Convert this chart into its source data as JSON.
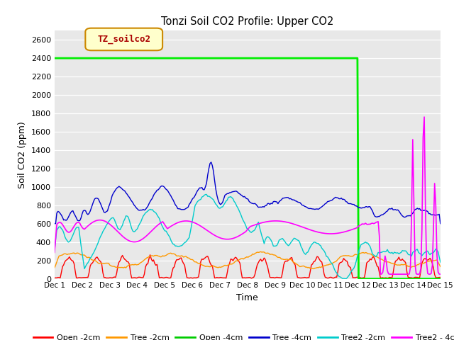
{
  "title": "Tonzi Soil CO2 Profile: Upper CO2",
  "xlabel": "Time",
  "ylabel": "Soil CO2 (ppm)",
  "ylim": [
    0,
    2700
  ],
  "yticks": [
    0,
    200,
    400,
    600,
    800,
    1000,
    1200,
    1400,
    1600,
    1800,
    2000,
    2200,
    2400,
    2600
  ],
  "xlim": [
    0,
    14
  ],
  "xtick_labels": [
    "Dec 1",
    "Dec 2",
    "Dec 3",
    "Dec 4",
    "Dec 5",
    "Dec 6",
    "Dec 7",
    "Dec 8",
    "Dec 9",
    "Dec 10",
    "Dec 11",
    "Dec 12",
    "Dec 13",
    "Dec 14",
    "Dec 15"
  ],
  "legend_label": "TZ_soilco2",
  "legend_items": [
    {
      "label": "Open -2cm",
      "color": "#ff0000"
    },
    {
      "label": "Tree -2cm",
      "color": "#ff9900"
    },
    {
      "label": "Open -4cm",
      "color": "#00cc00"
    },
    {
      "label": "Tree -4cm",
      "color": "#0000cc"
    },
    {
      "label": "Tree2 -2cm",
      "color": "#00cccc"
    },
    {
      "label": "Tree2 - 4cm",
      "color": "#ff00ff"
    }
  ],
  "bg_color": "#e8e8e8",
  "series": {
    "open_2cm": {
      "color": "#ff0000",
      "linewidth": 1.0
    },
    "tree_2cm": {
      "color": "#ff9900",
      "linewidth": 1.0
    },
    "open_4cm": {
      "color": "#00ee00",
      "linewidth": 2.0
    },
    "tree_4cm": {
      "color": "#0000cc",
      "linewidth": 1.0
    },
    "tree2_2cm": {
      "color": "#00cccc",
      "linewidth": 1.0
    },
    "tree2_4cm": {
      "color": "#ff00ff",
      "linewidth": 1.2
    }
  }
}
